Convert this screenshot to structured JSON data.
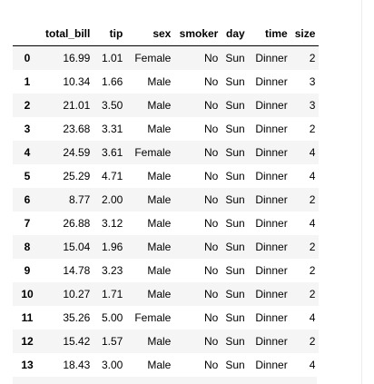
{
  "table": {
    "columns": [
      "",
      "total_bill",
      "tip",
      "sex",
      "smoker",
      "day",
      "time",
      "size"
    ],
    "rows": [
      [
        "0",
        "16.99",
        "1.01",
        "Female",
        "No",
        "Sun",
        "Dinner",
        "2"
      ],
      [
        "1",
        "10.34",
        "1.66",
        "Male",
        "No",
        "Sun",
        "Dinner",
        "3"
      ],
      [
        "2",
        "21.01",
        "3.50",
        "Male",
        "No",
        "Sun",
        "Dinner",
        "3"
      ],
      [
        "3",
        "23.68",
        "3.31",
        "Male",
        "No",
        "Sun",
        "Dinner",
        "2"
      ],
      [
        "4",
        "24.59",
        "3.61",
        "Female",
        "No",
        "Sun",
        "Dinner",
        "4"
      ],
      [
        "5",
        "25.29",
        "4.71",
        "Male",
        "No",
        "Sun",
        "Dinner",
        "4"
      ],
      [
        "6",
        "8.77",
        "2.00",
        "Male",
        "No",
        "Sun",
        "Dinner",
        "2"
      ],
      [
        "7",
        "26.88",
        "3.12",
        "Male",
        "No",
        "Sun",
        "Dinner",
        "4"
      ],
      [
        "8",
        "15.04",
        "1.96",
        "Male",
        "No",
        "Sun",
        "Dinner",
        "2"
      ],
      [
        "9",
        "14.78",
        "3.23",
        "Male",
        "No",
        "Sun",
        "Dinner",
        "2"
      ],
      [
        "10",
        "10.27",
        "1.71",
        "Male",
        "No",
        "Sun",
        "Dinner",
        "2"
      ],
      [
        "11",
        "35.26",
        "5.00",
        "Female",
        "No",
        "Sun",
        "Dinner",
        "4"
      ],
      [
        "12",
        "15.42",
        "1.57",
        "Male",
        "No",
        "Sun",
        "Dinner",
        "2"
      ],
      [
        "13",
        "18.43",
        "3.00",
        "Male",
        "No",
        "Sun",
        "Dinner",
        "4"
      ]
    ]
  },
  "colors": {
    "row_stripe": "#f5f5f5",
    "row_plain": "#ffffff",
    "header_rule": "#000000",
    "text": "#000000"
  }
}
